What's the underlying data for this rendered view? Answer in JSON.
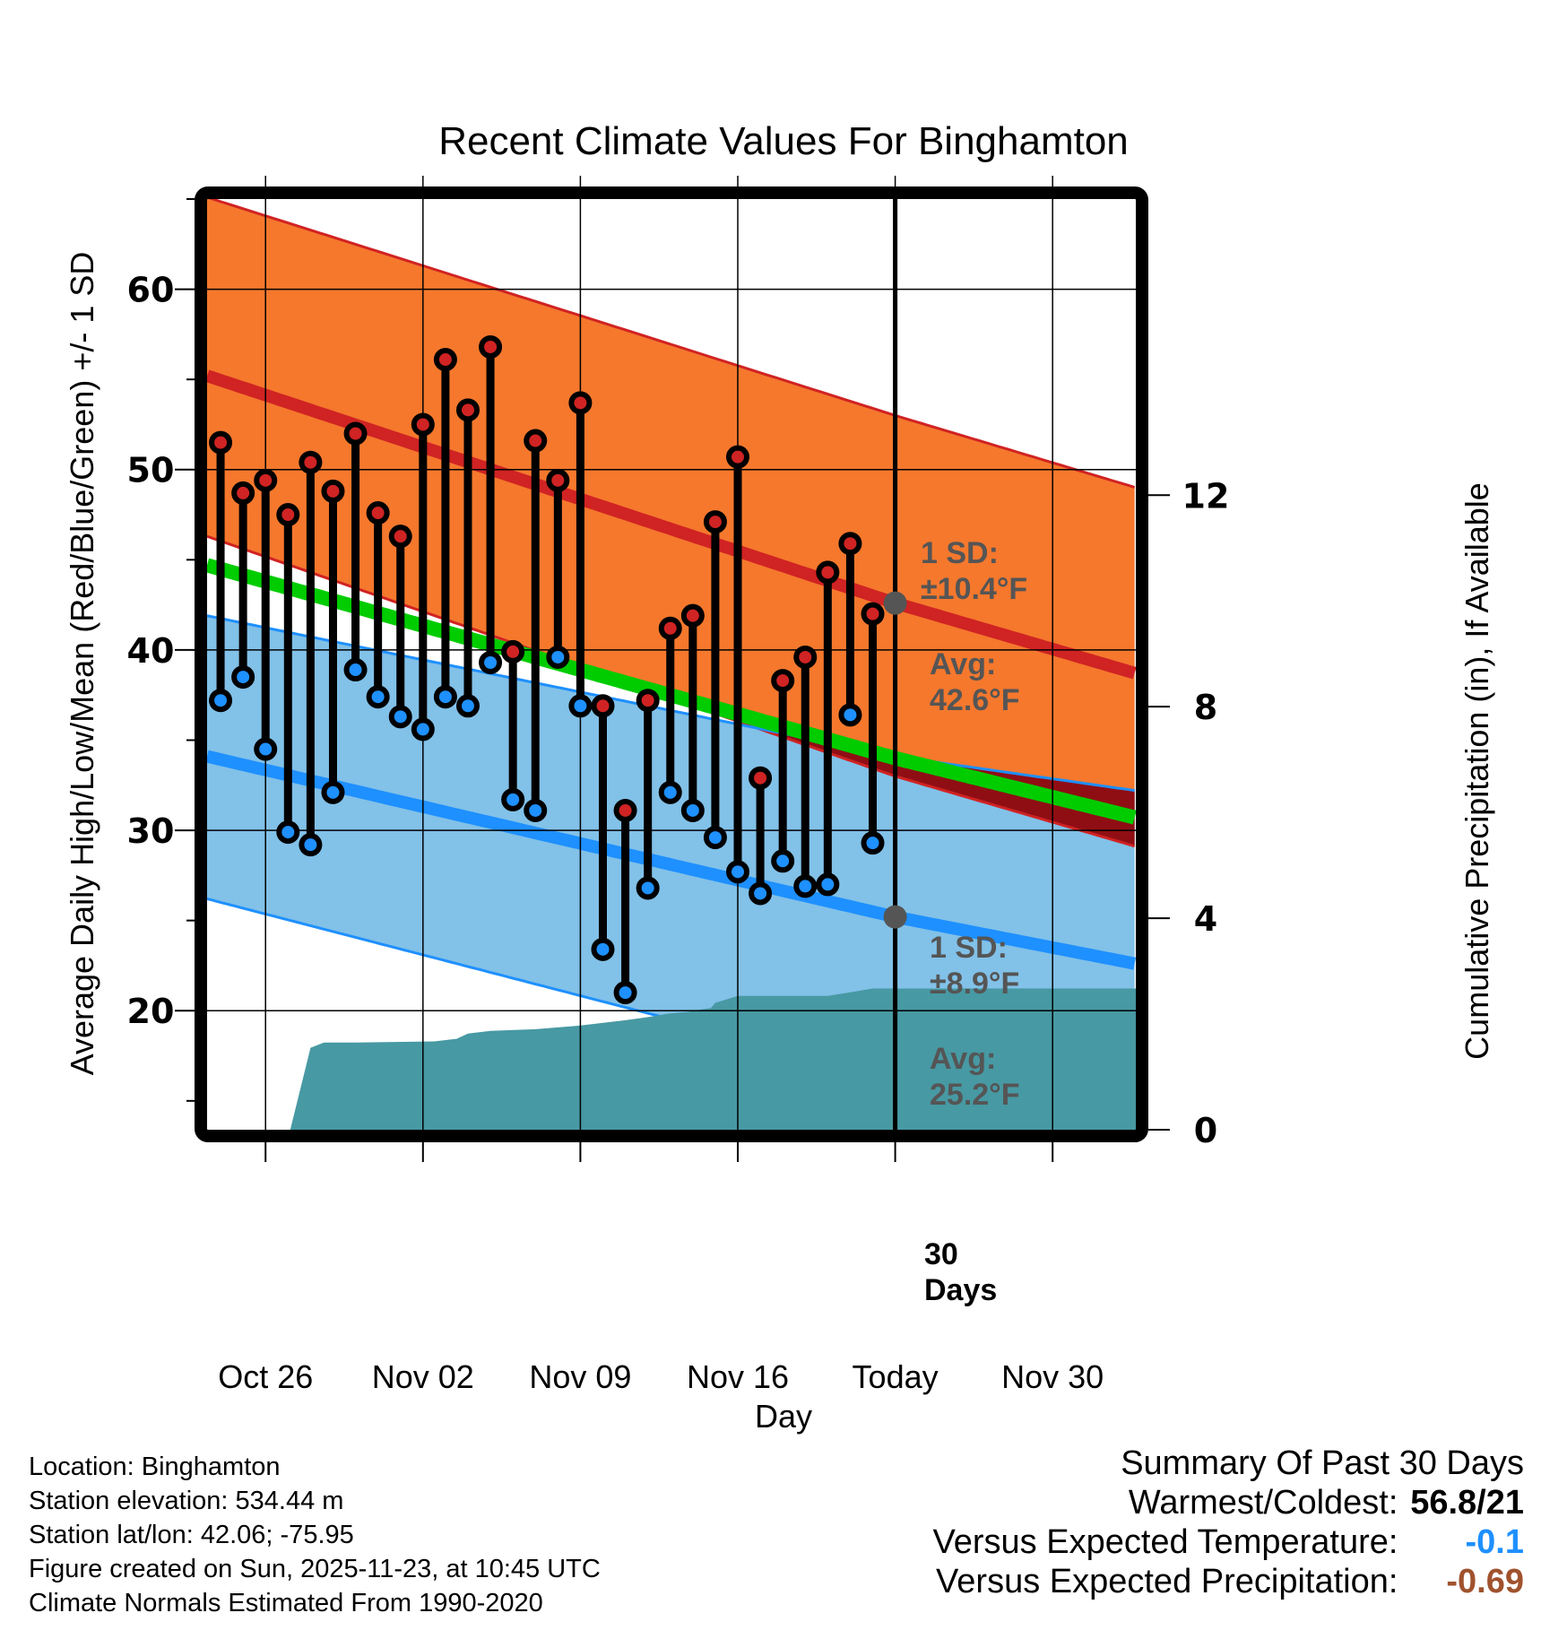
{
  "chart_data": {
    "type": "line",
    "title": "Recent Climate Values For Binghamton",
    "xlabel": "Day",
    "ylabel": "Average Daily High/Low/Mean (Red/Blue/Green) +/- 1 SD",
    "y2label": "Cumulative Precipitation (in), If Available",
    "ylim": [
      13.4,
      65
    ],
    "y2lim": [
      0,
      17.6
    ],
    "xlim_days": [
      -30.6,
      10.7
    ],
    "grid": true,
    "yticks": [
      20,
      30,
      40,
      50,
      60
    ],
    "y2ticks": [
      0,
      4,
      8,
      12
    ],
    "xticks": [
      {
        "day": -28,
        "label": "Oct 26"
      },
      {
        "day": -21,
        "label": "Nov 02"
      },
      {
        "day": -14,
        "label": "Nov 09"
      },
      {
        "day": -7,
        "label": "Nov 16"
      },
      {
        "day": 0,
        "label": "Today"
      },
      {
        "day": 7,
        "label": "Nov 30"
      }
    ],
    "today_day": 0,
    "daily": {
      "dates": [
        "Oct 24",
        "Oct 25",
        "Oct 26",
        "Oct 27",
        "Oct 28",
        "Oct 29",
        "Oct 30",
        "Oct 31",
        "Nov 01",
        "Nov 02",
        "Nov 03",
        "Nov 04",
        "Nov 05",
        "Nov 06",
        "Nov 07",
        "Nov 08",
        "Nov 09",
        "Nov 10",
        "Nov 11",
        "Nov 12",
        "Nov 13",
        "Nov 14",
        "Nov 15",
        "Nov 16",
        "Nov 17",
        "Nov 18",
        "Nov 19",
        "Nov 20",
        "Nov 21",
        "Nov 22"
      ],
      "day_offsets": [
        -30,
        -29,
        -28,
        -27,
        -26,
        -25,
        -24,
        -23,
        -22,
        -21,
        -20,
        -19,
        -18,
        -17,
        -16,
        -15,
        -14,
        -13,
        -12,
        -11,
        -10,
        -9,
        -8,
        -7,
        -6,
        -5,
        -4,
        -3,
        -2,
        -1
      ],
      "highs": [
        51.5,
        48.7,
        49.4,
        47.5,
        50.4,
        48.8,
        52.0,
        47.6,
        46.3,
        52.5,
        56.1,
        53.3,
        56.8,
        39.9,
        51.6,
        49.4,
        53.7,
        36.9,
        31.1,
        37.2,
        41.2,
        41.9,
        47.1,
        50.7,
        32.9,
        38.3,
        39.6,
        44.3,
        45.9,
        42.0
      ],
      "lows": [
        37.2,
        38.5,
        34.5,
        29.9,
        29.2,
        32.1,
        38.9,
        37.4,
        36.3,
        35.6,
        37.4,
        36.9,
        39.3,
        31.7,
        31.1,
        39.6,
        36.9,
        23.4,
        21.0,
        26.8,
        32.1,
        31.1,
        29.6,
        27.7,
        26.5,
        28.3,
        26.9,
        27.0,
        36.4,
        29.3
      ]
    },
    "series": [
      {
        "name": "Normal High",
        "color": "#d02323",
        "days": [
          -30.6,
          0,
          10.7
        ],
        "values": [
          55.2,
          42.6,
          38.7
        ]
      },
      {
        "name": "Normal High +1 SD",
        "color": "#d02323",
        "days": [
          -30.6,
          0,
          10.7
        ],
        "values": [
          65.1,
          53.0,
          49.0
        ]
      },
      {
        "name": "Normal High -1 SD",
        "color": "#d02323",
        "days": [
          -30.6,
          0,
          10.7
        ],
        "values": [
          46.3,
          33.0,
          29.1
        ]
      },
      {
        "name": "Normal Mean",
        "color": "#00cc00",
        "days": [
          -30.6,
          0,
          10.7
        ],
        "values": [
          44.7,
          34.0,
          30.7
        ]
      },
      {
        "name": "Normal Low",
        "color": "#1e90ff",
        "days": [
          -30.6,
          0,
          10.7
        ],
        "values": [
          34.1,
          25.2,
          22.6
        ]
      },
      {
        "name": "Normal Low +1 SD",
        "color": "#1e90ff",
        "days": [
          -30.6,
          0,
          10.7
        ],
        "values": [
          41.9,
          34.1,
          32.2
        ]
      },
      {
        "name": "Normal Low -1 SD",
        "color": "#1e90ff",
        "days": [
          -30.6,
          0,
          10.7
        ],
        "values": [
          26.2,
          16.3,
          13.7
        ]
      }
    ],
    "precipitation": {
      "name": "Cumulative Precipitation",
      "color": "#4799a3",
      "days": [
        -26.9,
        -26,
        -25.4,
        -24,
        -20.5,
        -19.5,
        -19,
        -18,
        -16,
        -14,
        -12,
        -11,
        -10,
        -9.2,
        -9,
        -8.2,
        -8,
        -7,
        -6,
        -4,
        -3,
        -2,
        -1,
        0,
        10.7
      ],
      "values": [
        0,
        1.55,
        1.65,
        1.65,
        1.67,
        1.72,
        1.82,
        1.87,
        1.9,
        1.97,
        2.07,
        2.13,
        2.2,
        2.23,
        2.25,
        2.3,
        2.4,
        2.53,
        2.53,
        2.53,
        2.53,
        2.6,
        2.67,
        2.67,
        2.67
      ]
    },
    "annotations": {
      "high_sd": {
        "line1": "1 SD:",
        "line2": "±10.4°F"
      },
      "high_avg": {
        "line1": "Avg:",
        "line2": "42.6°F",
        "value": 42.6
      },
      "low_sd": {
        "line1": "1 SD:",
        "line2": "±8.9°F"
      },
      "low_avg": {
        "line1": "Avg:",
        "line2": "25.2°F",
        "value": 25.2
      },
      "days": {
        "line1": "30",
        "line2": "Days"
      }
    },
    "colors": {
      "high_band": "#f5782d",
      "low_band": "#82c1e8",
      "overlap": "#8f0e14",
      "high_line": "#d02323",
      "low_line": "#1e90ff",
      "mean_line": "#00cc00",
      "precip": "#4799a3",
      "marker_high": "#d02323",
      "marker_low": "#1e90ff",
      "today_marker": "#555555"
    }
  },
  "info": {
    "location": "Location: Binghamton",
    "elevation": "Station elevation: 534.44 m",
    "latlon": "Station lat/lon: 42.06; -75.95",
    "created": "Figure created on Sun, 2025-11-23, at 10:45 UTC",
    "normals": "Climate Normals Estimated From 1990-2020"
  },
  "summary": {
    "title": "Summary Of Past 30 Days",
    "warmest_label": "Warmest/Coldest:",
    "warmest_value": "56.8/21",
    "temp_label": "Versus Expected Temperature:",
    "temp_value": "-0.1",
    "temp_color": "#1e90ff",
    "precip_label": "Versus Expected Precipitation:",
    "precip_value": "-0.69",
    "precip_color": "#a0522d"
  }
}
